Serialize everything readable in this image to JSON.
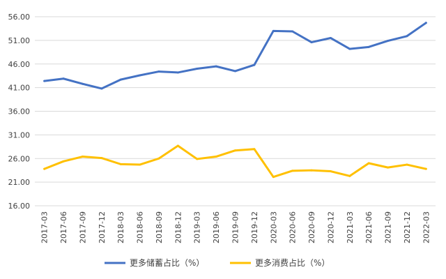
{
  "chart_data": {
    "type": "line",
    "title": "",
    "xlabel": "",
    "ylabel": "",
    "ylim": [
      16,
      56
    ],
    "yticks": [
      "56.00",
      "51.00",
      "46.00",
      "41.00",
      "36.00",
      "31.00",
      "26.00",
      "21.00",
      "16.00"
    ],
    "ytick_values": [
      56,
      51,
      46,
      41,
      36,
      31,
      26,
      21,
      16
    ],
    "grid": "horizontal",
    "legend_position": "bottom",
    "categories": [
      "2017-03",
      "2017-06",
      "2017-09",
      "2017-12",
      "2018-03",
      "2018-06",
      "2018-09",
      "2018-12",
      "2019-03",
      "2019-06",
      "2019-09",
      "2019-12",
      "2020-03",
      "2020-06",
      "2020-09",
      "2020-12",
      "2021-03",
      "2021-06",
      "2021-09",
      "2021-12",
      "2022-03"
    ],
    "series": [
      {
        "name": "更多储蓄占比（%）",
        "color": "#4472C4",
        "values": [
          42.4,
          42.9,
          41.8,
          40.8,
          42.7,
          43.6,
          44.4,
          44.2,
          45.0,
          45.5,
          44.5,
          45.8,
          53.0,
          52.9,
          50.6,
          51.5,
          49.2,
          49.6,
          50.9,
          51.9,
          54.7
        ]
      },
      {
        "name": "更多消费占比（%）",
        "color": "#FFC000",
        "values": [
          23.8,
          25.4,
          26.4,
          26.1,
          24.8,
          24.7,
          26.0,
          28.7,
          25.9,
          26.4,
          27.7,
          28.0,
          22.1,
          23.4,
          23.5,
          23.3,
          22.3,
          25.0,
          24.1,
          24.7,
          23.8
        ]
      }
    ]
  }
}
